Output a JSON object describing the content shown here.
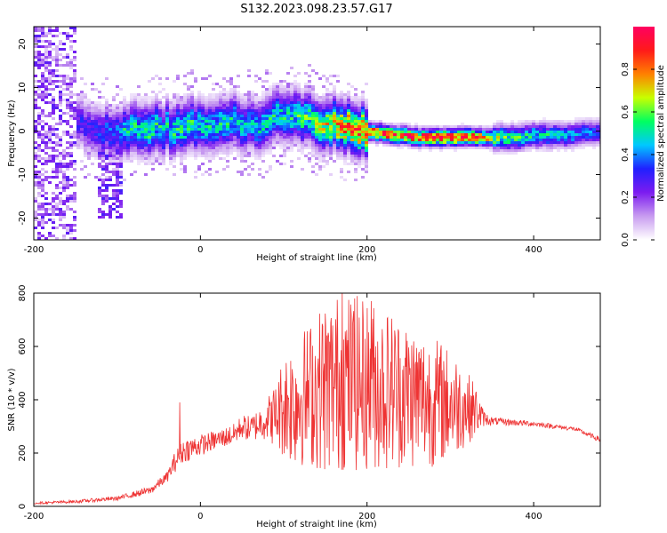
{
  "title": "S132.2023.098.23.57.G17",
  "chart_data": [
    {
      "type": "heatmap",
      "xlabel": "Height of straight line (km)",
      "ylabel": "Frequency (Hz)",
      "xlim": [
        -200,
        480
      ],
      "ylim": [
        -25,
        24
      ],
      "xticks": [
        -200,
        0,
        200,
        400
      ],
      "yticks": [
        -20,
        -10,
        0,
        10,
        20
      ],
      "colorbar": {
        "label": "Normalized spectral amplitude",
        "range": [
          0,
          1
        ],
        "ticks": [
          "0.0",
          "0.2",
          "0.4",
          "0.6",
          "0.8"
        ],
        "colors": [
          "#ffffff",
          "#c89cf0",
          "#7c1cf0",
          "#2020ff",
          "#00c8ff",
          "#00ff60",
          "#c8ff00",
          "#ff8000",
          "#ff1a1a",
          "#ff0060"
        ]
      },
      "ridge": {
        "x": [
          -150,
          -130,
          -115,
          -100,
          -90,
          -80,
          -60,
          -40,
          -20,
          0,
          20,
          40,
          60,
          80,
          100,
          120,
          140,
          160,
          180,
          200,
          220,
          240,
          260,
          280,
          300,
          320,
          340,
          360,
          380,
          400,
          420,
          440,
          460,
          480
        ],
        "freq": [
          2,
          1,
          0,
          -1,
          -0.5,
          1,
          0.5,
          0.5,
          0.5,
          1.5,
          2,
          2,
          1,
          2,
          4,
          3.5,
          2,
          1.5,
          0.5,
          0,
          -0.5,
          -1,
          -1.5,
          -1.5,
          -1.5,
          -1.5,
          -1.5,
          -1.5,
          -1.5,
          -1,
          -1,
          -1,
          -0.5,
          -0.5
        ],
        "peak_amplitude": [
          0.3,
          0.3,
          0.35,
          0.4,
          0.5,
          0.5,
          0.55,
          0.5,
          0.55,
          0.5,
          0.5,
          0.5,
          0.45,
          0.5,
          0.5,
          0.55,
          0.6,
          0.75,
          0.8,
          0.85,
          0.9,
          0.9,
          0.92,
          0.95,
          0.95,
          0.9,
          0.75,
          0.6,
          0.55,
          0.5,
          0.5,
          0.45,
          0.4,
          0.35
        ]
      }
    },
    {
      "type": "line",
      "xlabel": "Height of straight line (km)",
      "ylabel": "SNR (10 * v/v)",
      "xlim": [
        -200,
        480
      ],
      "ylim": [
        0,
        800
      ],
      "xticks": [
        -200,
        0,
        200,
        400
      ],
      "yticks": [
        0,
        200,
        400,
        600,
        800
      ],
      "series": [
        {
          "color": "#ee3333",
          "x": [
            -200,
            -150,
            -100,
            -60,
            -40,
            -30,
            -20,
            0,
            20,
            40,
            50,
            60,
            70,
            80,
            90,
            100,
            110,
            130,
            150,
            170,
            190,
            210,
            230,
            250,
            270,
            290,
            310,
            330,
            340,
            350,
            400,
            450,
            480
          ],
          "values": [
            12,
            18,
            30,
            60,
            110,
            170,
            210,
            230,
            250,
            270,
            300,
            290,
            310,
            330,
            340,
            380,
            390,
            420,
            450,
            470,
            460,
            450,
            440,
            420,
            400,
            390,
            380,
            360,
            330,
            320,
            310,
            290,
            250
          ],
          "spread": [
            4,
            6,
            8,
            15,
            20,
            40,
            45,
            40,
            35,
            40,
            45,
            50,
            60,
            80,
            120,
            200,
            240,
            270,
            330,
            340,
            330,
            320,
            300,
            280,
            260,
            230,
            180,
            100,
            30,
            15,
            10,
            8,
            10
          ],
          "spikes": [
            {
              "x": -25,
              "value": 390
            },
            {
              "x": 170,
              "value": 800
            },
            {
              "x": 185,
              "value": 780
            },
            {
              "x": 205,
              "value": 770
            }
          ]
        }
      ]
    }
  ]
}
